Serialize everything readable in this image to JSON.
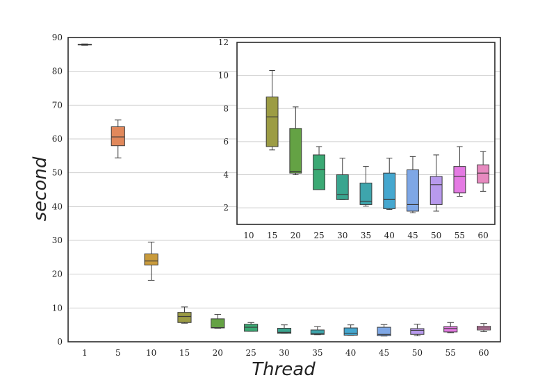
{
  "chart_data": [
    {
      "type": "box",
      "xlabel": "Thread",
      "ylabel": "second",
      "ylim": [
        0,
        90
      ],
      "yticks": [
        0,
        10,
        20,
        30,
        40,
        50,
        60,
        70,
        80,
        90
      ],
      "grid": "horizontal",
      "categories": [
        "1",
        "5",
        "10",
        "15",
        "20",
        "25",
        "30",
        "35",
        "40",
        "45",
        "50",
        "55",
        "60"
      ],
      "boxes": [
        {
          "min": 87.7,
          "q1": 87.8,
          "median": 87.9,
          "q3": 88.0,
          "max": 88.1,
          "color": "#3274a1"
        },
        {
          "min": 54.4,
          "q1": 58.0,
          "median": 60.6,
          "q3": 63.6,
          "max": 65.6,
          "color": "#e1885b"
        },
        {
          "min": 18.2,
          "q1": 22.7,
          "median": 23.9,
          "q3": 26.0,
          "max": 29.5,
          "color": "#c99b3c"
        },
        {
          "min": 5.5,
          "q1": 5.7,
          "median": 7.5,
          "q3": 8.7,
          "max": 10.3,
          "color": "#9c9c44"
        },
        {
          "min": 4.0,
          "q1": 4.1,
          "median": 4.2,
          "q3": 6.8,
          "max": 8.1,
          "color": "#64a244"
        },
        {
          "min": 3.1,
          "q1": 3.1,
          "median": 4.3,
          "q3": 5.2,
          "max": 5.7,
          "color": "#3ba974"
        },
        {
          "min": 2.5,
          "q1": 2.5,
          "median": 2.8,
          "q3": 4.0,
          "max": 5.0,
          "color": "#3aa58f"
        },
        {
          "min": 2.1,
          "q1": 2.2,
          "median": 2.4,
          "q3": 3.5,
          "max": 4.5,
          "color": "#3ea5ac"
        },
        {
          "min": 1.9,
          "q1": 1.95,
          "median": 2.5,
          "q3": 4.1,
          "max": 5.0,
          "color": "#45a7cf"
        },
        {
          "min": 1.7,
          "q1": 1.8,
          "median": 2.2,
          "q3": 4.3,
          "max": 5.1,
          "color": "#7ea7e6"
        },
        {
          "min": 1.8,
          "q1": 2.2,
          "median": 3.4,
          "q3": 3.9,
          "max": 5.2,
          "color": "#b89aed"
        },
        {
          "min": 2.7,
          "q1": 2.9,
          "median": 3.9,
          "q3": 4.5,
          "max": 5.7,
          "color": "#e47ae3"
        },
        {
          "min": 3.0,
          "q1": 3.5,
          "median": 4.1,
          "q3": 4.6,
          "max": 5.4,
          "color": "#e78ac0"
        }
      ]
    },
    {
      "type": "box",
      "ylim": [
        1,
        12
      ],
      "yticks": [
        2,
        4,
        6,
        8,
        10,
        12
      ],
      "grid": "horizontal",
      "categories": [
        "10",
        "15",
        "20",
        "25",
        "30",
        "35",
        "40",
        "45",
        "50",
        "55",
        "60"
      ],
      "boxes": [
        null,
        {
          "min": 5.5,
          "q1": 5.7,
          "median": 7.5,
          "q3": 8.7,
          "max": 10.3,
          "color": "#9c9c44"
        },
        {
          "min": 4.0,
          "q1": 4.1,
          "median": 4.2,
          "q3": 6.8,
          "max": 8.1,
          "color": "#64a244"
        },
        {
          "min": 3.1,
          "q1": 3.1,
          "median": 4.3,
          "q3": 5.2,
          "max": 5.7,
          "color": "#3ba974"
        },
        {
          "min": 2.5,
          "q1": 2.5,
          "median": 2.8,
          "q3": 4.0,
          "max": 5.0,
          "color": "#3aa58f"
        },
        {
          "min": 2.1,
          "q1": 2.2,
          "median": 2.4,
          "q3": 3.5,
          "max": 4.5,
          "color": "#3ea5ac"
        },
        {
          "min": 1.9,
          "q1": 1.95,
          "median": 2.5,
          "q3": 4.1,
          "max": 5.0,
          "color": "#45a7cf"
        },
        {
          "min": 1.7,
          "q1": 1.8,
          "median": 2.2,
          "q3": 4.3,
          "max": 5.1,
          "color": "#7ea7e6"
        },
        {
          "min": 1.8,
          "q1": 2.2,
          "median": 3.4,
          "q3": 3.9,
          "max": 5.2,
          "color": "#b89aed"
        },
        {
          "min": 2.7,
          "q1": 2.9,
          "median": 3.9,
          "q3": 4.5,
          "max": 5.7,
          "color": "#e47ae3"
        },
        {
          "min": 3.0,
          "q1": 3.5,
          "median": 4.1,
          "q3": 4.6,
          "max": 5.4,
          "color": "#e78ac0"
        }
      ]
    }
  ]
}
